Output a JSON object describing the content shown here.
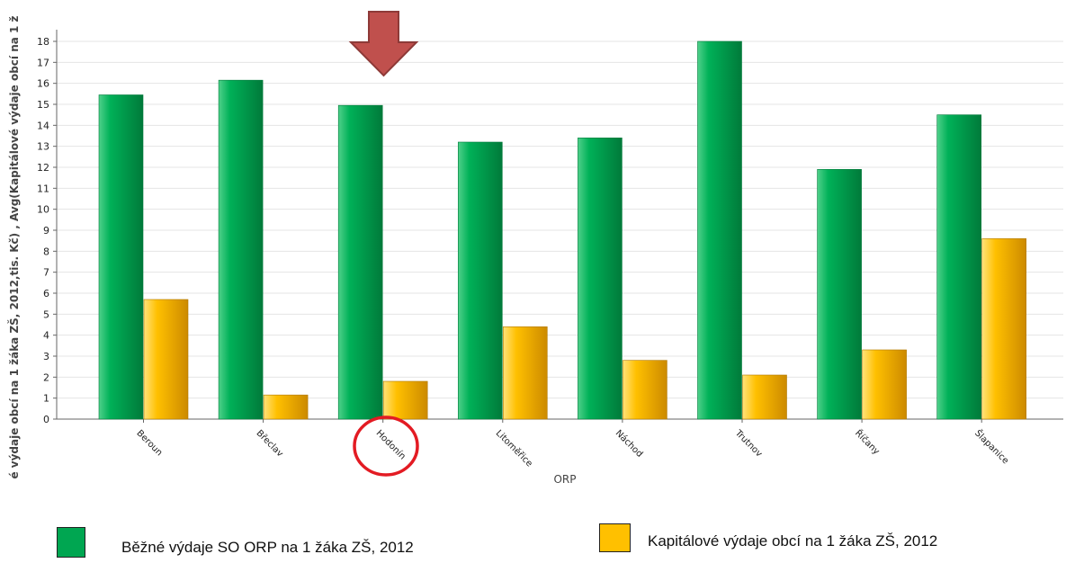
{
  "chart_data": {
    "type": "bar",
    "xlabel": "ORP",
    "ylabel": "é výdaje obcí na 1 žáka ZŠ, 2012,tis. Kč) , Avg(Kapitálové výdaje obcí na 1 ž",
    "categories": [
      "Beroun",
      "Břeclav",
      "Hodonín",
      "Litoměřice",
      "Náchod",
      "Trutnov",
      "Říčany",
      "Šlapanice"
    ],
    "ylim": [
      0,
      18
    ],
    "yticks": [
      0,
      1,
      2,
      3,
      4,
      5,
      6,
      7,
      8,
      9,
      10,
      11,
      12,
      13,
      14,
      15,
      16,
      17,
      18
    ],
    "grid": true,
    "series": [
      {
        "name": "Běžné výdaje SO ORP na 1 žáka ZŠ, 2012",
        "color": "#00a651",
        "values": [
          15.45,
          16.15,
          14.95,
          13.2,
          13.4,
          18.0,
          11.9,
          14.5
        ]
      },
      {
        "name": "Kapitálové výdaje obcí na 1 žáka ZŠ, 2012",
        "color": "#ffc000",
        "values": [
          5.7,
          1.15,
          1.8,
          4.4,
          2.8,
          2.1,
          3.3,
          8.6
        ]
      }
    ],
    "highlight": {
      "category": "Hodonín",
      "marker": "arrow-and-circle",
      "arrow_color": "#c0504d",
      "circle_color": "#e31b23"
    },
    "legend_position": "bottom"
  }
}
